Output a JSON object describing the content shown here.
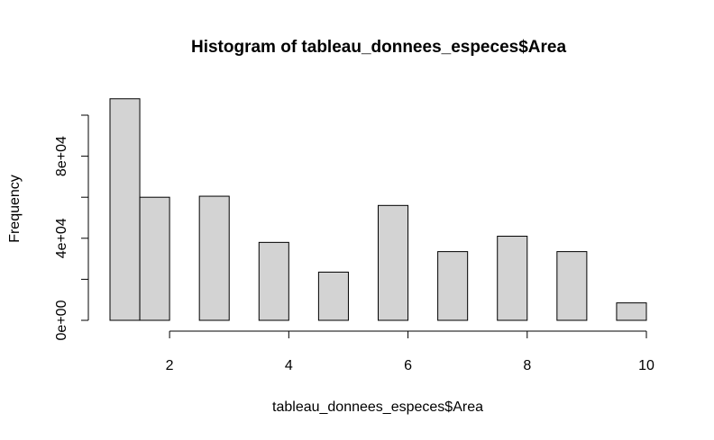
{
  "chart_data": {
    "type": "bar",
    "title": "Histogram of tableau_donnees_especes$Area",
    "xlabel": "tableau_donnees_especes$Area",
    "ylabel": "Frequency",
    "xlim": [
      1,
      10
    ],
    "ylim": [
      0,
      100000
    ],
    "x_ticks": [
      2,
      4,
      6,
      8,
      10
    ],
    "x_tick_labels": [
      "2",
      "4",
      "6",
      "8",
      "10"
    ],
    "y_ticks": [
      0,
      20000,
      40000,
      60000,
      80000,
      100000
    ],
    "y_tick_labels": [
      "0e+00",
      "4e+04",
      "8e+04"
    ],
    "y_labeled_ticks": [
      0,
      40000,
      80000
    ],
    "grid": false,
    "bins": [
      {
        "start": 1.0,
        "end": 1.5,
        "value": 108000
      },
      {
        "start": 1.5,
        "end": 2.0,
        "value": 60000
      },
      {
        "start": 2.5,
        "end": 3.0,
        "value": 60500
      },
      {
        "start": 3.5,
        "end": 4.0,
        "value": 38000
      },
      {
        "start": 4.5,
        "end": 5.0,
        "value": 23500
      },
      {
        "start": 5.5,
        "end": 6.0,
        "value": 56000
      },
      {
        "start": 6.5,
        "end": 7.0,
        "value": 33500
      },
      {
        "start": 7.5,
        "end": 8.0,
        "value": 41000
      },
      {
        "start": 8.5,
        "end": 9.0,
        "value": 33500
      },
      {
        "start": 9.5,
        "end": 10.0,
        "value": 8500
      }
    ],
    "colors": {
      "bar_fill": "#d3d3d3",
      "bar_stroke": "#000000"
    }
  }
}
